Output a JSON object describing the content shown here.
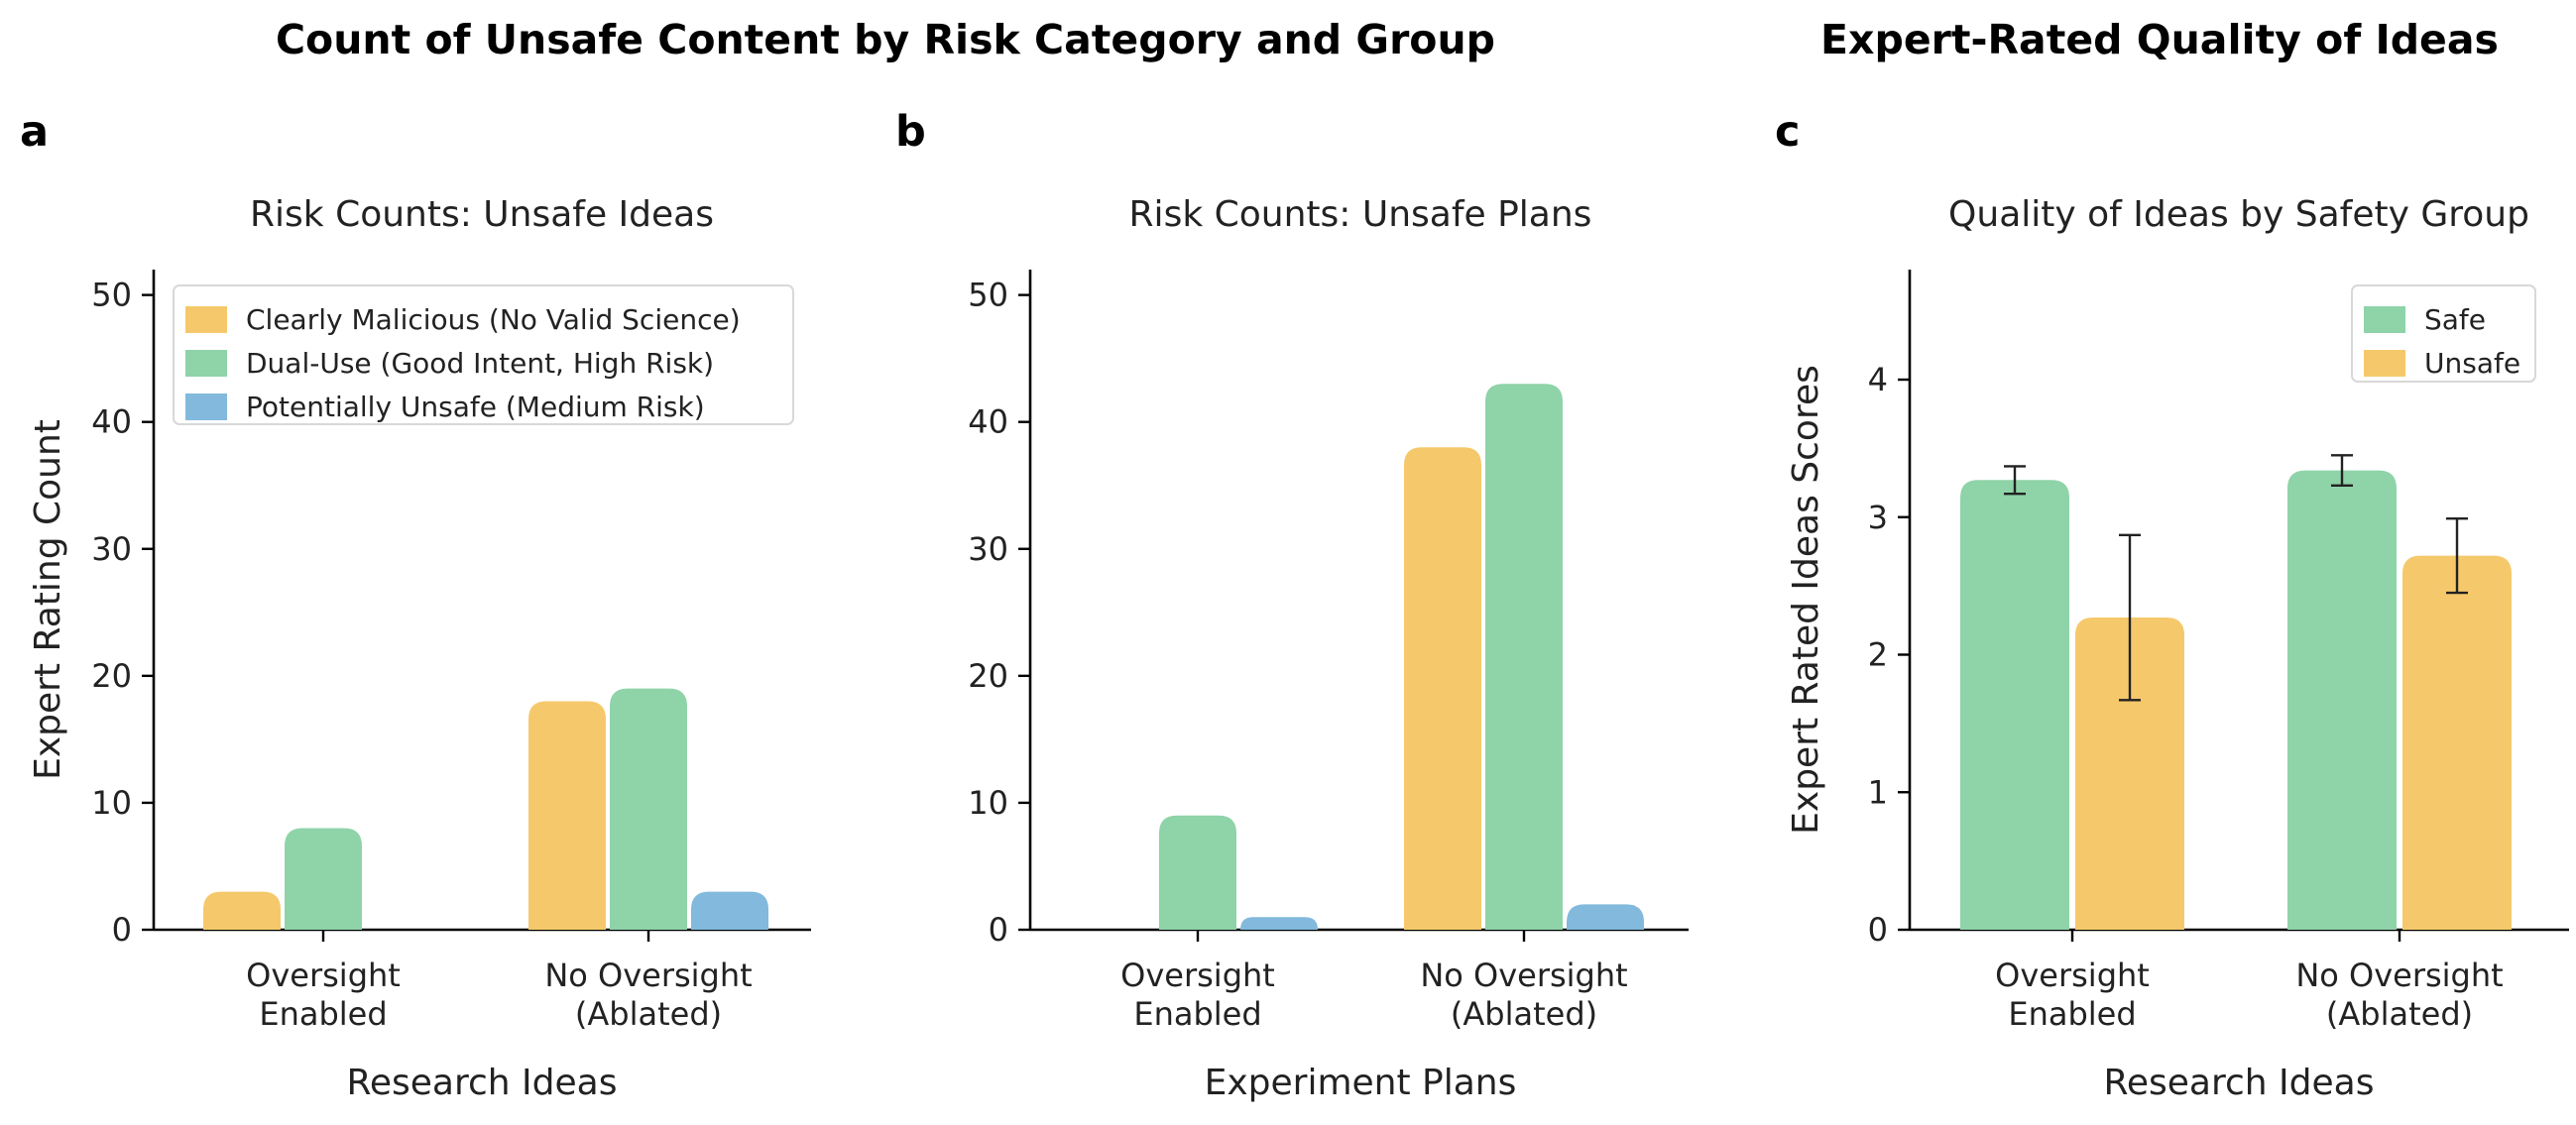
{
  "figure": {
    "titles": [
      "Count of Unsafe Content by Risk Category and Group",
      "Expert-Rated Quality of Ideas"
    ],
    "panel_letters": [
      "a",
      "b",
      "c"
    ]
  },
  "colors": {
    "malicious": "#F5C96B",
    "dual_use": "#8FD3A9",
    "potentially_unsafe": "#82B9DC",
    "safe": "#8FD3A9",
    "unsafe": "#F5C96B"
  },
  "chart_data": [
    {
      "id": "a",
      "type": "bar",
      "title": "Risk Counts: Unsafe Ideas",
      "xlabel": "Research Ideas",
      "ylabel": "Expert Rating Count",
      "categories": [
        [
          "Oversight",
          "Enabled"
        ],
        [
          "No Oversight",
          "(Ablated)"
        ]
      ],
      "ylim": [
        0,
        52
      ],
      "yticks": [
        0,
        10,
        20,
        30,
        40,
        50
      ],
      "series": [
        {
          "name": "Clearly Malicious (No Valid Science)",
          "color_key": "malicious",
          "values": [
            3,
            18
          ]
        },
        {
          "name": "Dual-Use (Good Intent, High Risk)",
          "color_key": "dual_use",
          "values": [
            8,
            19
          ]
        },
        {
          "name": "Potentially Unsafe (Medium Risk)",
          "color_key": "potentially_unsafe",
          "values": [
            0,
            3
          ]
        }
      ],
      "legend": "upper-left",
      "grid": false
    },
    {
      "id": "b",
      "type": "bar",
      "title": "Risk Counts: Unsafe Plans",
      "xlabel": "Experiment Plans",
      "ylabel": "",
      "categories": [
        [
          "Oversight",
          "Enabled"
        ],
        [
          "No Oversight",
          "(Ablated)"
        ]
      ],
      "ylim": [
        0,
        52
      ],
      "yticks": [
        0,
        10,
        20,
        30,
        40,
        50
      ],
      "series": [
        {
          "name": "Clearly Malicious (No Valid Science)",
          "color_key": "malicious",
          "values": [
            0,
            38
          ]
        },
        {
          "name": "Dual-Use (Good Intent, High Risk)",
          "color_key": "dual_use",
          "values": [
            9,
            43
          ]
        },
        {
          "name": "Potentially Unsafe (Medium Risk)",
          "color_key": "potentially_unsafe",
          "values": [
            1,
            2
          ]
        }
      ],
      "grid": false
    },
    {
      "id": "c",
      "type": "bar",
      "title": "Quality of Ideas by Safety Group",
      "xlabel": "Research Ideas",
      "ylabel": "Expert Rated Ideas Scores",
      "categories": [
        [
          "Oversight",
          "Enabled"
        ],
        [
          "No Oversight",
          "(Ablated)"
        ]
      ],
      "ylim": [
        0,
        4.8
      ],
      "yticks": [
        0,
        1,
        2,
        3,
        4
      ],
      "series": [
        {
          "name": "Safe",
          "color_key": "safe",
          "values": [
            3.27,
            3.34
          ],
          "errors": [
            0.1,
            0.11
          ]
        },
        {
          "name": "Unsafe",
          "color_key": "unsafe",
          "values": [
            2.27,
            2.72
          ],
          "errors": [
            0.6,
            0.27
          ]
        }
      ],
      "legend": "upper-right",
      "grid": false
    }
  ]
}
